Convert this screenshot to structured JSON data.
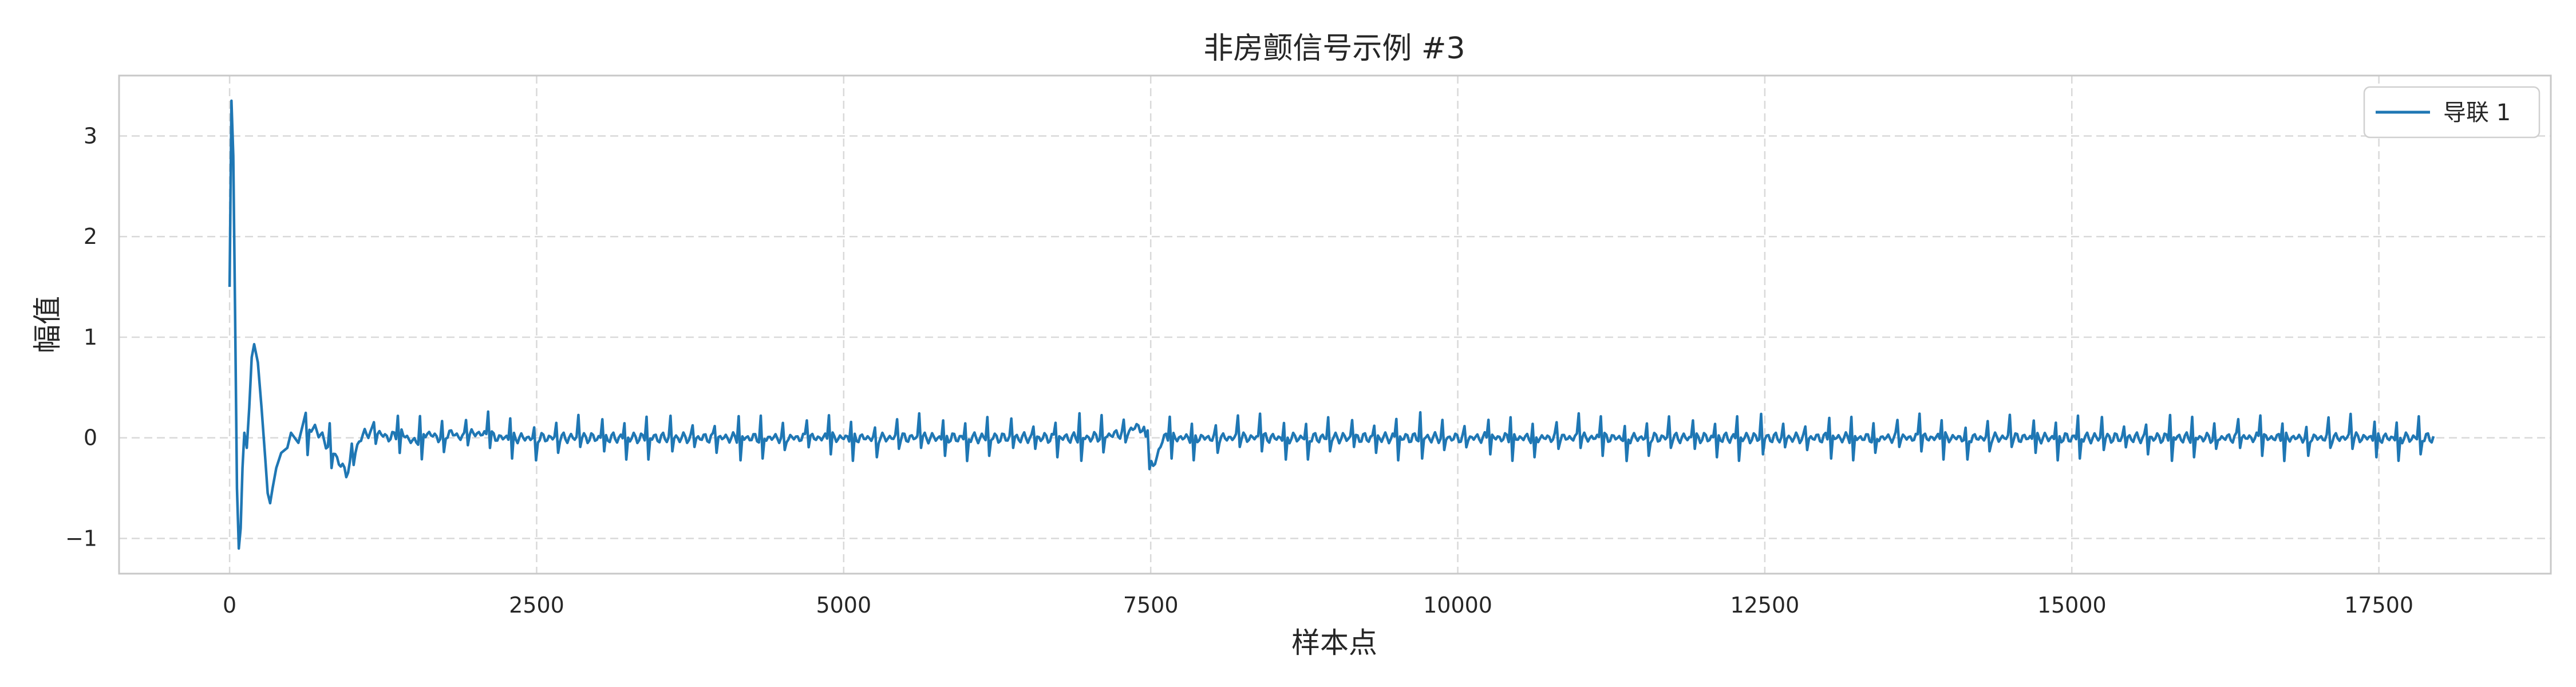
{
  "chart_data": {
    "type": "line",
    "title": "非房颤信号示例 #3",
    "xlabel": "样本点",
    "ylabel": "幅值",
    "xlim": [
      -900,
      18900
    ],
    "ylim": [
      -1.35,
      3.6
    ],
    "x_ticks": [
      0,
      2500,
      5000,
      7500,
      10000,
      12500,
      15000,
      17500
    ],
    "y_ticks": [
      -1,
      0,
      1,
      2,
      3
    ],
    "x_tick_labels": [
      "0",
      "2500",
      "5000",
      "7500",
      "10000",
      "12500",
      "15000",
      "17500"
    ],
    "y_tick_labels": [
      "−1",
      "0",
      "1",
      "2",
      "3"
    ],
    "grid": true,
    "legend_position": "top-right",
    "series": [
      {
        "name": "导联 1",
        "color": "#1f77b4",
        "x": [
          0,
          15,
          30,
          45,
          60,
          75,
          90,
          105,
          120,
          140,
          160,
          180,
          200,
          230,
          260,
          290,
          310,
          330,
          350,
          380,
          420,
          470,
          500,
          560,
          620,
          700,
          780,
          850,
          920,
          950,
          1000,
          1050,
          1100,
          1200,
          1300,
          1400,
          1500,
          1600,
          1700,
          1800,
          1900,
          2000,
          2200,
          2400,
          2600,
          2800,
          3000,
          3500,
          4000,
          4500,
          5000,
          5500,
          6000,
          6500,
          7000,
          7300,
          7400,
          7450,
          7500,
          7520,
          7600,
          8000,
          9000,
          10000,
          11000,
          12000,
          13000,
          14000,
          15000,
          16000,
          17000,
          17500,
          18000
        ],
        "y": [
          1.5,
          3.35,
          2.8,
          1.2,
          -0.5,
          -1.1,
          -0.9,
          -0.3,
          0.05,
          -0.1,
          0.3,
          0.8,
          0.93,
          0.75,
          0.3,
          -0.2,
          -0.55,
          -0.65,
          -0.5,
          -0.3,
          -0.15,
          -0.1,
          0.05,
          -0.05,
          0.05,
          0.1,
          -0.05,
          -0.15,
          -0.3,
          -0.35,
          -0.2,
          -0.05,
          0.05,
          0.05,
          0.0,
          0.05,
          -0.05,
          0.05,
          0.0,
          0.05,
          0.0,
          0.05,
          0.0,
          0.0,
          0.0,
          0.0,
          0.0,
          0.0,
          0.0,
          0.0,
          0.0,
          0.0,
          0.0,
          0.0,
          0.0,
          0.05,
          0.12,
          0.05,
          -0.25,
          -0.3,
          0.0,
          0.0,
          0.0,
          0.0,
          0.0,
          0.0,
          0.0,
          0.0,
          0.0,
          0.0,
          0.0,
          0.0,
          0.0
        ],
        "spikes": {
          "interval": 185,
          "start": 620,
          "end": 17950,
          "up_amplitude": 0.22,
          "down_amplitude": -0.2
        }
      }
    ]
  }
}
